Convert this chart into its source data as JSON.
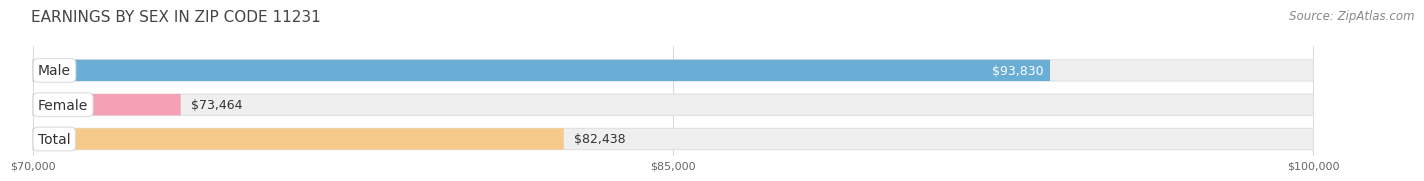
{
  "title": "EARNINGS BY SEX IN ZIP CODE 11231",
  "source": "Source: ZipAtlas.com",
  "categories": [
    "Male",
    "Female",
    "Total"
  ],
  "values": [
    93830,
    73464,
    82438
  ],
  "bar_colors": [
    "#6aaed6",
    "#f4a0b5",
    "#f5c98a"
  ],
  "value_labels": [
    "$93,830",
    "$73,464",
    "$82,438"
  ],
  "xmin": 70000,
  "xmax": 100000,
  "xticks": [
    70000,
    85000,
    100000
  ],
  "xtick_labels": [
    "$70,000",
    "$85,000",
    "$100,000"
  ],
  "background_color": "#ffffff",
  "track_color": "#efefef",
  "track_edge_color": "#e0e0e0",
  "title_fontsize": 11,
  "source_fontsize": 8.5,
  "label_fontsize": 10,
  "value_fontsize": 9
}
